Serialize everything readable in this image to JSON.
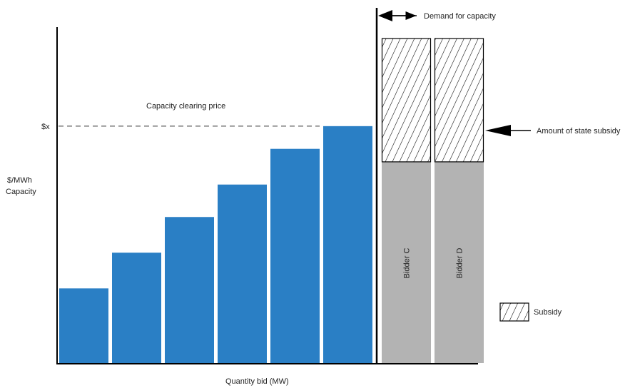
{
  "labels": {
    "y_axis_line1": "$/MWh",
    "y_axis_line2": "Capacity",
    "x_axis": "Quantity bid (MW)",
    "clearing_price": "Capacity clearing price",
    "price_tick": "$x",
    "demand": "Demand for capacity",
    "state_subsidy": "Amount of state subsidy",
    "legend_subsidy": "Subsidy"
  },
  "colors": {
    "bid_bar": "#2a7fc5",
    "subsidized_bid": "#b3b3b3",
    "axis": "#000000",
    "hatch": "#000000"
  },
  "chart_data": {
    "type": "bar",
    "stacked_with_subsidy": true,
    "xlabel": "Quantity bid (MW)",
    "ylabel": "$/MWh Capacity",
    "clearing_price_level": 0.73,
    "price_label": "$x",
    "bars": [
      {
        "label": "",
        "value": 0.23,
        "subsidy": 0
      },
      {
        "label": "",
        "value": 0.34,
        "subsidy": 0
      },
      {
        "label": "",
        "value": 0.45,
        "subsidy": 0
      },
      {
        "label": "",
        "value": 0.55,
        "subsidy": 0
      },
      {
        "label": "",
        "value": 0.66,
        "subsidy": 0
      },
      {
        "label": "",
        "value": 0.73,
        "subsidy": 0
      },
      {
        "label": "Bidder C",
        "value": 0.62,
        "subsidy": 0.38
      },
      {
        "label": "Bidder D",
        "value": 0.62,
        "subsidy": 0.38
      }
    ],
    "demand_after_bar_index": 5,
    "legend": [
      {
        "name": "Subsidy",
        "pattern": "hatch"
      }
    ]
  }
}
